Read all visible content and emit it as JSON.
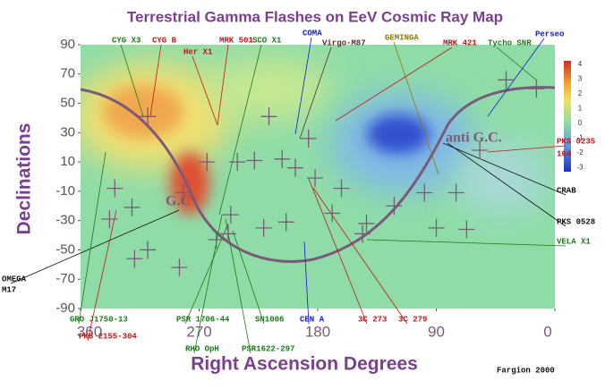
{
  "chart_data": {
    "type": "scatter",
    "title": "Terrestrial Gamma Flashes on EeV Cosmic Ray Map",
    "xlabel": "Right Ascension Degrees",
    "ylabel": "Declinations",
    "credit": "Fargion 2000",
    "color": "#7b5a78",
    "xlim": [
      360,
      0
    ],
    "xticks": [
      360,
      270,
      180,
      90,
      0
    ],
    "ylim": [
      -90,
      90
    ],
    "yticks": [
      -90,
      -70,
      -50,
      -30,
      -10,
      10,
      30,
      50,
      70,
      90
    ],
    "colorbar_ticks": [
      4,
      3,
      2,
      1,
      0,
      -1,
      -2,
      -3
    ],
    "x": [
      309,
      217,
      187,
      207,
      228,
      241,
      264,
      334,
      282,
      321,
      338,
      246,
      248,
      257,
      221,
      204,
      197,
      182,
      162,
      169,
      143,
      146,
      122,
      99,
      75,
      90,
      67,
      309,
      319,
      285,
      37,
      14,
      57
    ],
    "values": [
      41,
      41,
      26,
      12,
      11,
      10,
      10,
      -8,
      -11,
      -21,
      -29,
      -26,
      -39,
      -43,
      -35,
      -31,
      6,
      -1,
      -8,
      -25,
      -32,
      -39,
      -20,
      -11,
      -11,
      -35,
      -36,
      -50,
      -56,
      -62,
      66,
      60,
      18
    ],
    "regions": {
      "gc": "G.C",
      "anti_gc": "anti G.C."
    },
    "annotations": [
      {
        "text": "CYG X3",
        "color": "#1a7a1a"
      },
      {
        "text": "CYG B",
        "color": "#c01818"
      },
      {
        "text": "Her X1",
        "color": "#c01818"
      },
      {
        "text": "MRK 501",
        "color": "#c01818"
      },
      {
        "text": "SCO X1",
        "color": "#1a7a1a"
      },
      {
        "text": "COMA",
        "color": "#1a1acc"
      },
      {
        "text": "Virgo-M87",
        "color": "#5a2a2a"
      },
      {
        "text": "GEMINGA",
        "color": "#8a7a00"
      },
      {
        "text": "MRK 421",
        "color": "#c01818"
      },
      {
        "text": "Tycho SNR",
        "color": "#1a7a1a"
      },
      {
        "text": "Perseo",
        "color": "#1a1acc"
      },
      {
        "text": "PKS 0235",
        "color": "#c01818"
      },
      {
        "text": "164",
        "color": "#c01818"
      },
      {
        "text": "CRAB",
        "color": "#111111"
      },
      {
        "text": "PKS 0528",
        "color": "#111111"
      },
      {
        "text": "VELA X1",
        "color": "#1a7a1a"
      },
      {
        "text": "OMEGA",
        "color": "#111111"
      },
      {
        "text": "M17",
        "color": "#111111"
      },
      {
        "text": "GRO J1750-13",
        "color": "#1a7a1a"
      },
      {
        "text": "PKS 2155-304",
        "color": "#c01818"
      },
      {
        "text": "PSR 1706-44",
        "color": "#1a7a1a"
      },
      {
        "text": "RHO OpH",
        "color": "#1a7a1a"
      },
      {
        "text": "PSR1622-297",
        "color": "#1a7a1a"
      },
      {
        "text": "SN1006",
        "color": "#1a7a1a"
      },
      {
        "text": "CEN A",
        "color": "#1a1acc"
      },
      {
        "text": "3C 273",
        "color": "#c01818"
      },
      {
        "text": "3C 279",
        "color": "#c01818"
      }
    ]
  }
}
